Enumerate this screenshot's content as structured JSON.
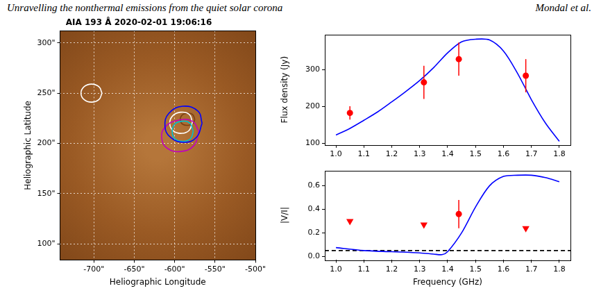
{
  "header": {
    "title": "Unravelling the nonthermal emissions from the quiet solar corona",
    "authors": "Mondal et al."
  },
  "chart_data": [
    {
      "type": "contour",
      "title": "AIA 193 Å 2020-02-01 19:06:16",
      "x_label": "Heliographic Longitude",
      "y_label": "Heliographic Latitude",
      "xlim": [
        -742,
        -500
      ],
      "xticks": [
        {
          "value": -700,
          "label": "-700\""
        },
        {
          "value": -650,
          "label": "-650\""
        },
        {
          "value": -600,
          "label": "-600\""
        },
        {
          "value": -550,
          "label": "-550\""
        },
        {
          "value": -500,
          "label": "-500\""
        }
      ],
      "ylim": [
        84,
        312
      ],
      "yticks": [
        {
          "value": 100,
          "label": "100\""
        },
        {
          "value": 150,
          "label": "150\""
        },
        {
          "value": 200,
          "label": "200\""
        },
        {
          "value": 250,
          "label": "250\""
        },
        {
          "value": 300,
          "label": "300\""
        }
      ],
      "grid": true,
      "series": [
        {
          "color": "#ffffff",
          "line_style": "solid",
          "x": [
            -690,
            -693.8,
            -703,
            -712.2,
            -716,
            -712.2,
            -703,
            -693.8,
            -690
          ],
          "values": [
            250,
            256.4,
            259,
            256.4,
            250,
            243.6,
            241,
            243.6,
            250
          ]
        },
        {
          "color": "#0000ff",
          "line_style": "solid",
          "x": [
            -566,
            -571,
            -590,
            -607,
            -612,
            -605,
            -588,
            -573,
            -566
          ],
          "values": [
            220,
            232,
            237,
            230,
            217,
            206,
            201,
            206,
            220
          ]
        },
        {
          "color": "#c000c0",
          "line_style": "solid",
          "x": [
            -570,
            -578,
            -596,
            -612,
            -616,
            -609,
            -592,
            -576,
            -570
          ],
          "values": [
            212,
            222,
            223,
            216,
            205,
            195,
            192,
            198,
            212
          ]
        },
        {
          "color": "#00c0d0",
          "line_style": "solid",
          "x": [
            -577,
            -581,
            -591,
            -600,
            -603,
            -599,
            -589,
            -580,
            -577
          ],
          "values": [
            212,
            220,
            222,
            219,
            211,
            204,
            202,
            205,
            212
          ]
        },
        {
          "color": "#ffffff",
          "line_style": "solid",
          "x": [
            -578,
            -582,
            -593,
            -603,
            -606,
            -601,
            -591,
            -582,
            -578
          ],
          "values": [
            221,
            229,
            231,
            227,
            219,
            212,
            210,
            213,
            221
          ]
        },
        {
          "color": "#7a3f12",
          "line_style": "solid",
          "x": [
            -575,
            -578,
            -585,
            -591,
            -593,
            -590,
            -583,
            -577,
            -575
          ],
          "values": [
            224,
            229,
            230,
            228,
            223,
            219,
            218,
            220,
            224
          ]
        }
      ]
    },
    {
      "type": "scatter",
      "y_label": "Flux density (Jy)",
      "xlim": [
        0.96,
        1.84
      ],
      "xticks": [
        {
          "value": 1.0,
          "label": "1.0"
        },
        1.1,
        1.2,
        1.3,
        1.4,
        1.5,
        1.6,
        1.7,
        1.8
      ],
      "ylim": [
        95,
        395
      ],
      "yticks": [
        100,
        200,
        300
      ],
      "grid": false,
      "series": [
        {
          "type": "line",
          "color": "#0000ff",
          "line_style": "solid",
          "x": [
            1.0,
            1.05,
            1.1,
            1.15,
            1.2,
            1.25,
            1.3,
            1.35,
            1.4,
            1.45,
            1.5,
            1.55,
            1.6,
            1.65,
            1.7,
            1.75,
            1.8
          ],
          "values": [
            122,
            140,
            162,
            185,
            212,
            240,
            270,
            305,
            345,
            375,
            382,
            380,
            350,
            290,
            218,
            155,
            105
          ]
        },
        {
          "type": "scatter",
          "color": "#ff0000",
          "marker": "circle",
          "x": [
            1.05,
            1.315,
            1.44,
            1.68
          ],
          "values": [
            182,
            265,
            328,
            283
          ],
          "errors": [
            18,
            45,
            45,
            45
          ]
        }
      ]
    },
    {
      "type": "scatter",
      "x_label": "Frequency (GHz)",
      "y_label": "|V/I|",
      "xlim": [
        0.96,
        1.84
      ],
      "xticks": [
        {
          "value": 1.0,
          "label": "1.0"
        },
        1.1,
        1.2,
        1.3,
        1.4,
        1.5,
        1.6,
        1.7,
        1.8
      ],
      "ylim": [
        -0.03,
        0.73
      ],
      "yticks": [
        {
          "value": 0,
          "label": "0.0"
        },
        0.2,
        0.4,
        0.6
      ],
      "grid": false,
      "series": [
        {
          "type": "line",
          "color": "#0000ff",
          "line_style": "solid",
          "x": [
            1.0,
            1.1,
            1.2,
            1.3,
            1.35,
            1.38,
            1.4,
            1.45,
            1.5,
            1.55,
            1.6,
            1.65,
            1.7,
            1.75,
            1.8
          ],
          "values": [
            0.075,
            0.05,
            0.04,
            0.03,
            0.02,
            0.015,
            0.04,
            0.2,
            0.42,
            0.6,
            0.68,
            0.69,
            0.69,
            0.67,
            0.635
          ]
        },
        {
          "type": "line",
          "color": "#000000",
          "line_style": "dashed",
          "x": [
            0.96,
            1.84
          ],
          "values": [
            0.05,
            0.05
          ]
        },
        {
          "type": "scatter",
          "color": "#ff0000",
          "marker": "circle",
          "x": [
            1.44
          ],
          "values": [
            0.36
          ],
          "errors": [
            0.12
          ]
        },
        {
          "type": "scatter",
          "color": "#ff0000",
          "marker": "triangle_down",
          "x": [
            1.05,
            1.315,
            1.68
          ],
          "values": [
            0.3,
            0.27,
            0.24
          ]
        }
      ]
    }
  ]
}
